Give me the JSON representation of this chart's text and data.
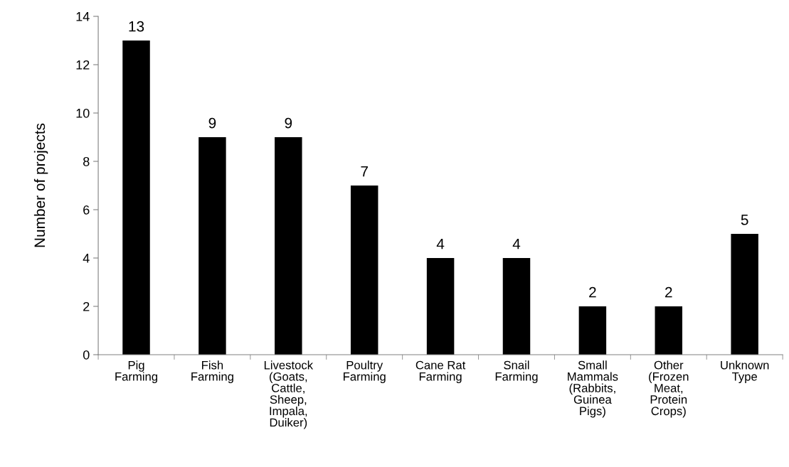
{
  "chart_data": {
    "type": "bar",
    "ylabel": "Number of projects",
    "categories": [
      "Pig\nFarming",
      "Fish\nFarming",
      "Livestock\n(Goats,\nCattle,\nSheep,\nImpala,\nDuiker)",
      "Poultry\nFarming",
      "Cane Rat\nFarming",
      "Snail\nFarming",
      "Small\nMammals\n(Rabbits,\nGuinea\nPigs)",
      "Other\n(Frozen\nMeat,\nProtein\nCrops)",
      "Unknown\nType"
    ],
    "values": [
      13,
      9,
      9,
      7,
      4,
      4,
      2,
      2,
      5
    ],
    "color": "#000000",
    "ylim": [
      0,
      14
    ],
    "yticks": [
      0,
      2,
      4,
      6,
      8,
      10,
      12,
      14
    ],
    "data_labels": true,
    "grid": false
  }
}
